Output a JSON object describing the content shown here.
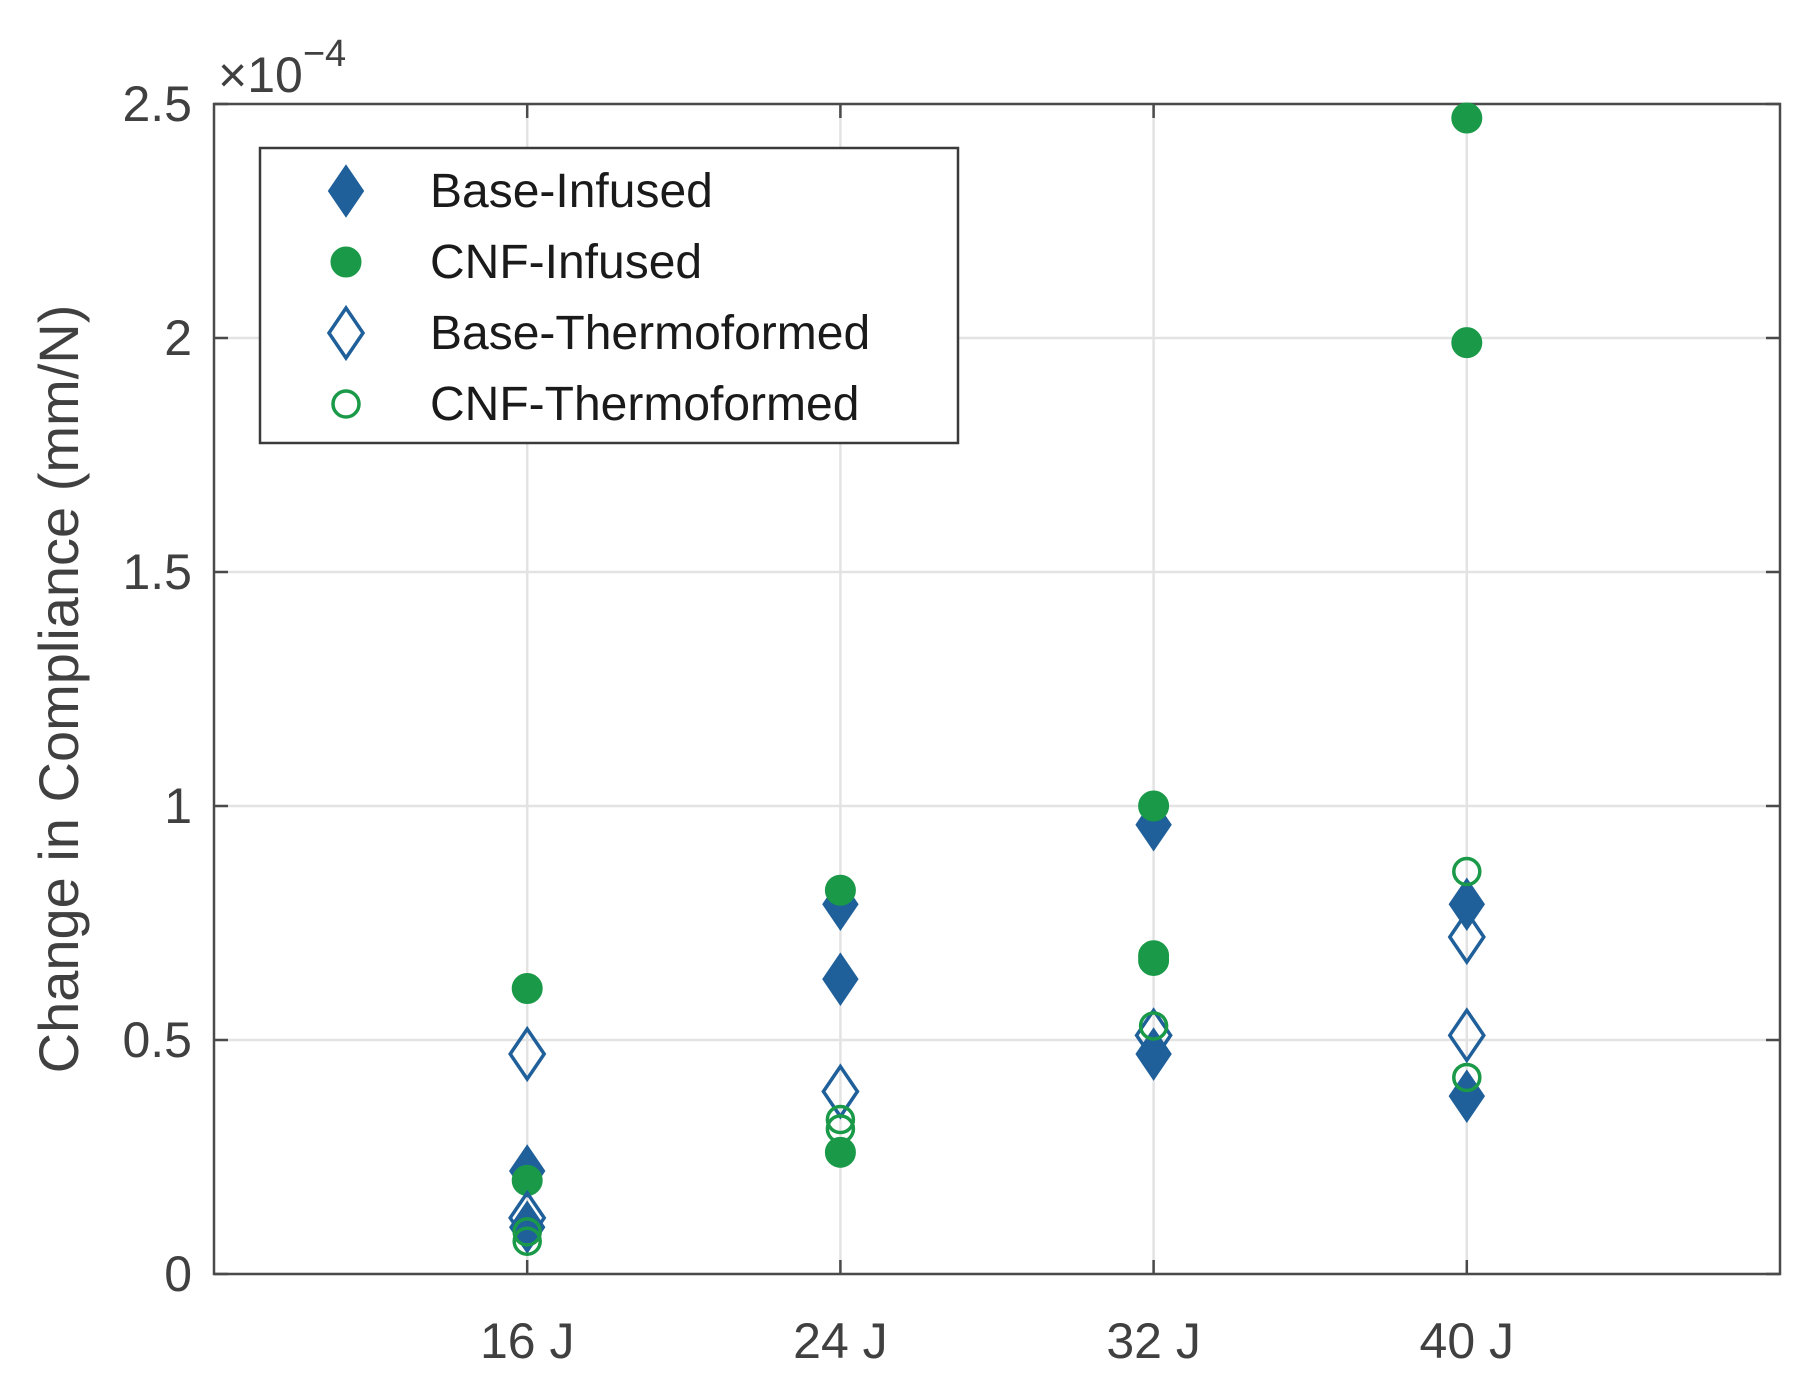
{
  "chart_data": {
    "type": "scatter",
    "title": "",
    "xlabel": "",
    "ylabel": "Change in Compliance (mm/N)",
    "categories": [
      "16 J",
      "24 J",
      "32 J",
      "40 J"
    ],
    "xlim": [
      0,
      5
    ],
    "ylim": [
      0,
      2.5
    ],
    "y_scale_label": {
      "base": "×10",
      "exponent": "−4"
    },
    "yticks": [
      {
        "value": 0,
        "label": "0"
      },
      {
        "value": 0.5,
        "label": "0.5"
      },
      {
        "value": 1,
        "label": "1"
      },
      {
        "value": 1.5,
        "label": "1.5"
      },
      {
        "value": 2,
        "label": "2"
      },
      {
        "value": 2.5,
        "label": "2.5"
      }
    ],
    "grid": true,
    "legend_position": "top-left",
    "series": [
      {
        "name": "Base-Infused",
        "marker": "diamond-filled",
        "color": "#1f5f9a",
        "points": [
          {
            "x": 1,
            "y": 0.22
          },
          {
            "x": 1,
            "y": 0.1
          },
          {
            "x": 2,
            "y": 0.79
          },
          {
            "x": 2,
            "y": 0.63
          },
          {
            "x": 3,
            "y": 0.96
          },
          {
            "x": 3,
            "y": 0.47
          },
          {
            "x": 4,
            "y": 0.79
          },
          {
            "x": 4,
            "y": 0.38
          }
        ]
      },
      {
        "name": "CNF-Infused",
        "marker": "circle-filled",
        "color": "#1a9a48",
        "points": [
          {
            "x": 1,
            "y": 0.61
          },
          {
            "x": 1,
            "y": 0.2
          },
          {
            "x": 2,
            "y": 0.82
          },
          {
            "x": 2,
            "y": 0.26
          },
          {
            "x": 3,
            "y": 1.0
          },
          {
            "x": 3,
            "y": 0.68
          },
          {
            "x": 3,
            "y": 0.67
          },
          {
            "x": 4,
            "y": 2.47
          },
          {
            "x": 4,
            "y": 1.99
          }
        ]
      },
      {
        "name": "Base-Thermoformed",
        "marker": "diamond-open",
        "color": "#1f5f9a",
        "points": [
          {
            "x": 1,
            "y": 0.47
          },
          {
            "x": 1,
            "y": 0.12
          },
          {
            "x": 2,
            "y": 0.39
          },
          {
            "x": 3,
            "y": 0.51
          },
          {
            "x": 4,
            "y": 0.72
          },
          {
            "x": 4,
            "y": 0.51
          }
        ]
      },
      {
        "name": "CNF-Thermoformed",
        "marker": "circle-open",
        "color": "#1a9a48",
        "points": [
          {
            "x": 1,
            "y": 0.09
          },
          {
            "x": 1,
            "y": 0.07
          },
          {
            "x": 2,
            "y": 0.33
          },
          {
            "x": 2,
            "y": 0.31
          },
          {
            "x": 3,
            "y": 0.53
          },
          {
            "x": 4,
            "y": 0.86
          },
          {
            "x": 4,
            "y": 0.42
          }
        ]
      }
    ]
  }
}
